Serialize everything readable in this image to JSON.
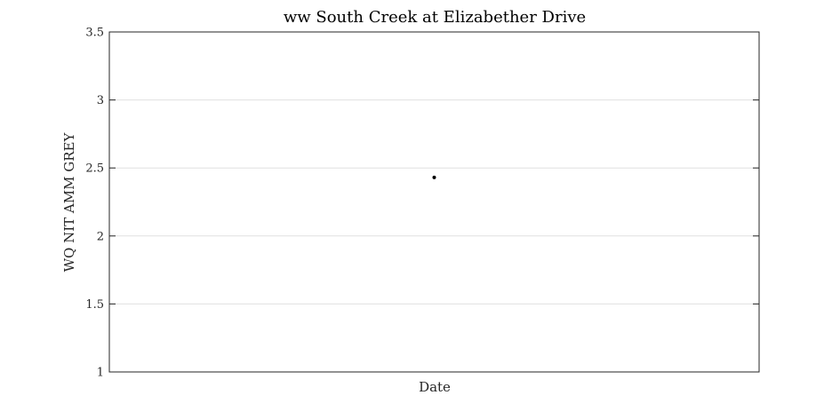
{
  "chart_data": {
    "type": "scatter",
    "title": "ww South Creek at Elizabether Drive",
    "xlabel": "Date",
    "ylabel": "WQ NIT AMM GREY",
    "ylim": [
      1,
      3.5
    ],
    "yticks": [
      1,
      1.5,
      2,
      2.5,
      3,
      3.5
    ],
    "ytick_labels": [
      "1",
      "1.5",
      "2",
      "2.5",
      "3",
      "3.5"
    ],
    "xlim": [
      0,
      1
    ],
    "grid": "horizontal",
    "legend": "none",
    "series": [
      {
        "x": [
          0.5
        ],
        "y": [
          2.43
        ]
      }
    ],
    "colors": {
      "point": "#000000",
      "grid": "#e0e0e0",
      "axes": "#262626"
    }
  }
}
